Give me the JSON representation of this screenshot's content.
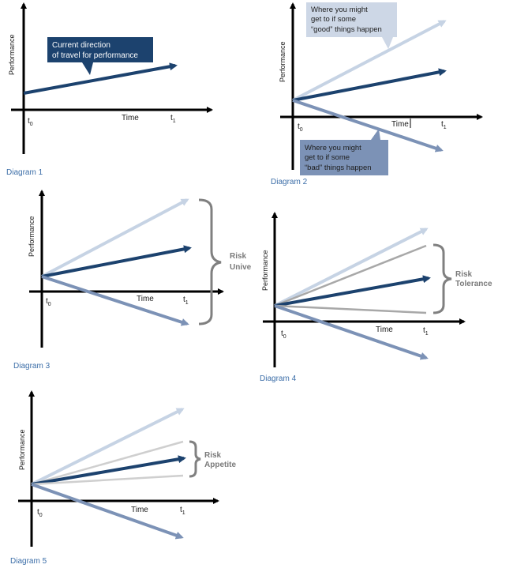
{
  "colors": {
    "axis": "#000000",
    "current": "#1c426e",
    "good": "#c6d3e4",
    "bad": "#7c92b6",
    "tolerance": "#a8a8a8",
    "appetite": "#cfcfcf",
    "bracket": "#808080",
    "caption": "#3c6ea8"
  },
  "common": {
    "ylabel": "Performance",
    "xlabel": "Time",
    "t0": "t",
    "t0_sub": "0",
    "t1": "t",
    "t1_sub": "1"
  },
  "diagram1": {
    "caption": "Diagram  1",
    "callout_line1": "Current direction",
    "callout_line2": "of travel for performance"
  },
  "diagram2": {
    "caption": "Diagram  2",
    "good_line1": "Where you might",
    "good_line2": "get to if some",
    "good_line3": "“good” things happen",
    "bad_line1": "Where you might",
    "bad_line2": "get to if some",
    "bad_line3": "“bad” things happen"
  },
  "diagram3": {
    "caption": "Diagram  3",
    "bracket_label1": "Risk",
    "bracket_label2": "Unive"
  },
  "diagram4": {
    "caption": "Diagram  4",
    "bracket_label1": "Risk",
    "bracket_label2": "Tolerance"
  },
  "diagram5": {
    "caption": "Diagram  5",
    "bracket_label1": "Risk",
    "bracket_label2": "Appetite"
  }
}
